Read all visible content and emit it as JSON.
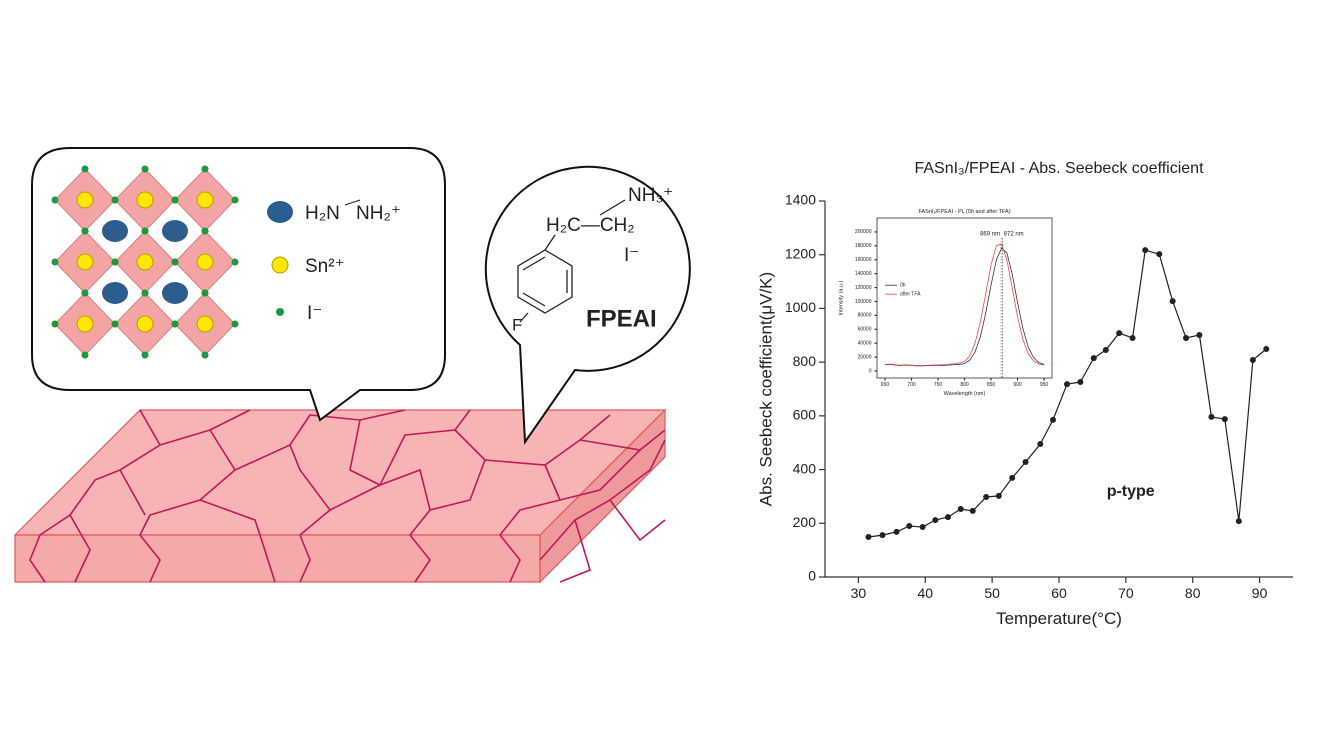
{
  "diagram": {
    "legend": [
      "H₂N",
      "NH₂⁺",
      "Sn²⁺",
      "I⁻"
    ],
    "molecule": {
      "amine": "NH₃⁺",
      "chain": "H₂C—CH₂",
      "anion": "I⁻",
      "fluoro": "F",
      "name": "FPEAI"
    }
  },
  "chart_data": [
    {
      "type": "line",
      "title": "FASnI₃/FPEAI - Abs. Seebeck coefficient",
      "x_label": "Temperature(°C)",
      "y_label": "Abs. Seebeck coefficient(μV/K)",
      "annotation": "p-type",
      "color": "#222222",
      "markers": true,
      "x": [
        31.5,
        33.6,
        35.7,
        37.6,
        39.6,
        41.5,
        43.4,
        45.3,
        47.1,
        49.1,
        51,
        53,
        55,
        57.2,
        59.1,
        61.2,
        63.2,
        65.2,
        67,
        69,
        71,
        72.9,
        75,
        77,
        79,
        81,
        82.8,
        84.8,
        86.9,
        89,
        91
      ],
      "values": [
        149,
        156,
        168,
        190,
        186,
        212,
        223,
        253,
        246,
        298,
        302,
        369,
        428,
        495,
        585,
        718,
        726,
        815,
        845,
        908,
        890,
        1217,
        1202,
        1027,
        890,
        901,
        596,
        588,
        208,
        808,
        849
      ],
      "xlim": [
        25,
        95
      ],
      "xticks": [
        30,
        40,
        50,
        60,
        70,
        80,
        90
      ],
      "ylim": [
        0,
        1400
      ],
      "yticks": [
        0,
        200,
        400,
        600,
        800,
        1000,
        1200,
        1400
      ]
    },
    {
      "type": "line",
      "title": "FASnI₃/FPEAI - PL (0h and after TFA)",
      "x_label": "Wavelength (nm)",
      "y_label": "Intensity (a.u.)",
      "markers": false,
      "x": [
        650,
        660,
        670,
        680,
        690,
        700,
        710,
        720,
        730,
        740,
        750,
        760,
        770,
        780,
        790,
        800,
        810,
        820,
        830,
        840,
        850,
        860,
        870,
        880,
        890,
        900,
        910,
        920,
        930,
        940,
        950
      ],
      "series": [
        {
          "name": "0h",
          "color": "#333333",
          "values": [
            9000,
            9500,
            8500,
            8000,
            8500,
            8000,
            7500,
            7500,
            7800,
            8000,
            8000,
            8200,
            8500,
            9000,
            9500,
            10700,
            15800,
            27600,
            49500,
            83000,
            123400,
            159500,
            177000,
            169500,
            139200,
            98800,
            61600,
            34900,
            19600,
            12300,
            9400
          ]
        },
        {
          "name": "after TFA",
          "color": "#e8484b",
          "values": [
            9500,
            10000,
            9000,
            8500,
            9000,
            8500,
            8000,
            8000,
            8300,
            8600,
            8800,
            9200,
            9800,
            10500,
            11500,
            13500,
            22300,
            40600,
            70800,
            111000,
            152300,
            180000,
            182700,
            159300,
            119700,
            78300,
            45500,
            25200,
            14700,
            10100,
            8500
          ]
        }
      ],
      "peaks": [
        {
          "x": 869,
          "label": "869 nm",
          "color": "#e8484b"
        },
        {
          "x": 872,
          "label": "872 nm",
          "color": "#333333"
        }
      ],
      "xlim": [
        635,
        965
      ],
      "xticks": [
        650,
        700,
        750,
        800,
        850,
        900,
        950
      ],
      "ylim": [
        -10000,
        220000
      ],
      "yticks": [
        0,
        20000,
        40000,
        60000,
        80000,
        100000,
        120000,
        140000,
        160000,
        180000,
        200000
      ]
    }
  ]
}
